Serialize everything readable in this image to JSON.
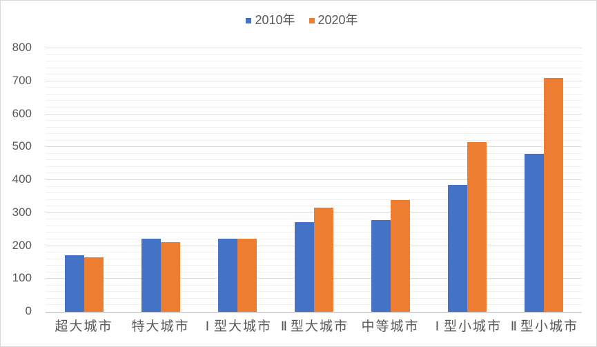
{
  "chart_data": {
    "type": "bar",
    "title": "",
    "categories": [
      "超大城市",
      "特大城市",
      "Ⅰ型大城市",
      "Ⅱ型大城市",
      "中等城市",
      "Ⅰ型小城市",
      "Ⅱ型小城市"
    ],
    "series": [
      {
        "name": "2010年",
        "color": "#4472C4",
        "values": [
          172,
          221,
          221,
          273,
          278,
          386,
          480
        ]
      },
      {
        "name": "2020年",
        "color": "#ED7D31",
        "values": [
          166,
          212,
          221,
          317,
          340,
          516,
          710
        ]
      }
    ],
    "xlabel": "",
    "ylabel": "",
    "ylim": [
      0,
      800
    ],
    "y_major_step": 100,
    "y_minor_step": 20,
    "y_tick_labels": [
      "0",
      "100",
      "200",
      "300",
      "400",
      "500",
      "600",
      "700",
      "800"
    ],
    "grid": "major-and-minor-horizontal",
    "legend_position": "top-center"
  },
  "style": {
    "text_color": "#595959",
    "major_grid_color": "#DCDCDC",
    "minor_grid_color": "#EFEFEF",
    "axis_line_color": "#D6D6D6",
    "border_color": "#D9D9D9"
  }
}
